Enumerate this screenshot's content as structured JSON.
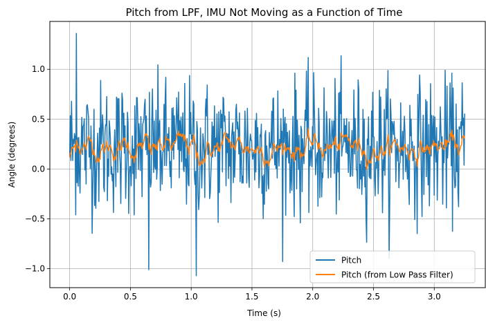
{
  "chart_data": {
    "type": "line",
    "title": "Pitch from LPF, IMU Not Moving as a Function of Time",
    "xlabel": "Time (s)",
    "ylabel": "Angle (degrees)",
    "xlim": [
      -0.163,
      3.42
    ],
    "ylim": [
      -1.19,
      1.48
    ],
    "x_ticks": [
      0.0,
      0.5,
      1.0,
      1.5,
      2.0,
      2.5,
      3.0
    ],
    "x_tick_labels": [
      "0.0",
      "0.5",
      "1.0",
      "1.5",
      "2.0",
      "2.5",
      "3.0"
    ],
    "y_ticks": [
      -1.0,
      -0.5,
      0.0,
      0.5,
      1.0
    ],
    "y_tick_labels": [
      "−1.0",
      "−0.5",
      "0.0",
      "0.5",
      "1.0"
    ],
    "grid": true,
    "legend_position": "lower-right",
    "x_range": [
      0.0,
      3.25
    ],
    "series": [
      {
        "name": "Pitch",
        "color": "#1f77b4",
        "mean": 0.22,
        "spread": 0.33,
        "extremes": {
          "max": 1.36,
          "min": -1.07
        }
      },
      {
        "name": "Pitch (from Low Pass Filter)",
        "color": "#ff7f0e",
        "mean": 0.22,
        "spread": 0.12,
        "extremes": {
          "max": 0.66,
          "min": -0.13
        }
      }
    ]
  }
}
